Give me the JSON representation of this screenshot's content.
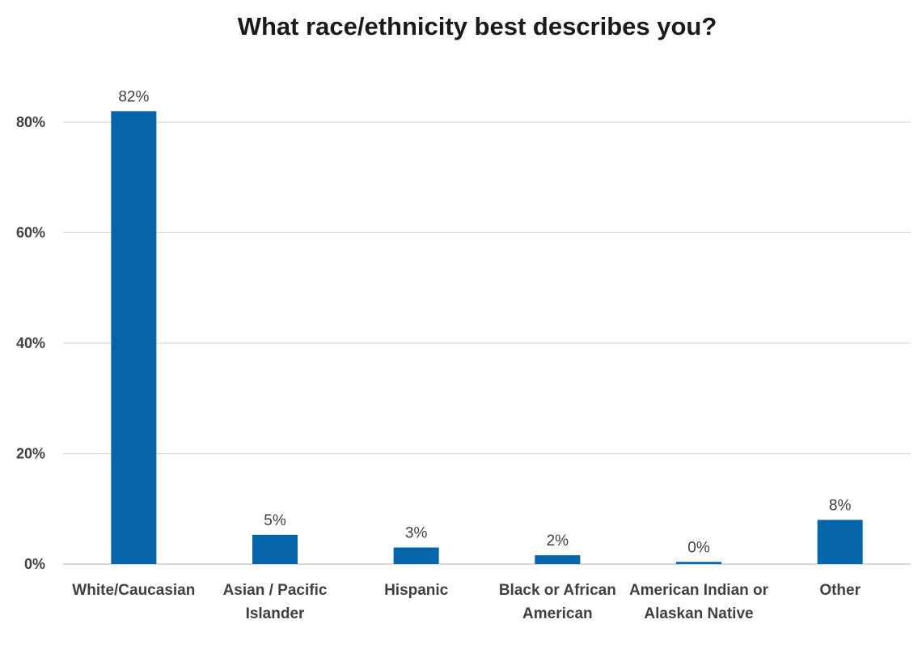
{
  "chart_data": {
    "type": "bar",
    "title": "What race/ethnicity best describes you?",
    "categories": [
      "White/Caucasian",
      "Asian / Pacific Islander",
      "Hispanic",
      "Black or African American",
      "American Indian or Alaskan Native",
      "Other"
    ],
    "values": [
      82,
      5.3,
      3,
      1.6,
      0.4,
      8
    ],
    "data_labels": [
      "82%",
      "5%",
      "3%",
      "2%",
      "0%",
      "8%"
    ],
    "yticks": [
      0,
      20,
      40,
      60,
      80
    ],
    "ytick_labels": [
      "0%",
      "20%",
      "40%",
      "60%",
      "80%"
    ],
    "ylim": [
      0,
      87
    ],
    "xlabel": "",
    "ylabel": "",
    "grid": true,
    "legend": "none",
    "colors": {
      "bar": "#0565a8",
      "grid": "#d9d9d9",
      "axis": "#bfbfbf",
      "text": "#404040",
      "title": "#1a1a1a"
    }
  }
}
